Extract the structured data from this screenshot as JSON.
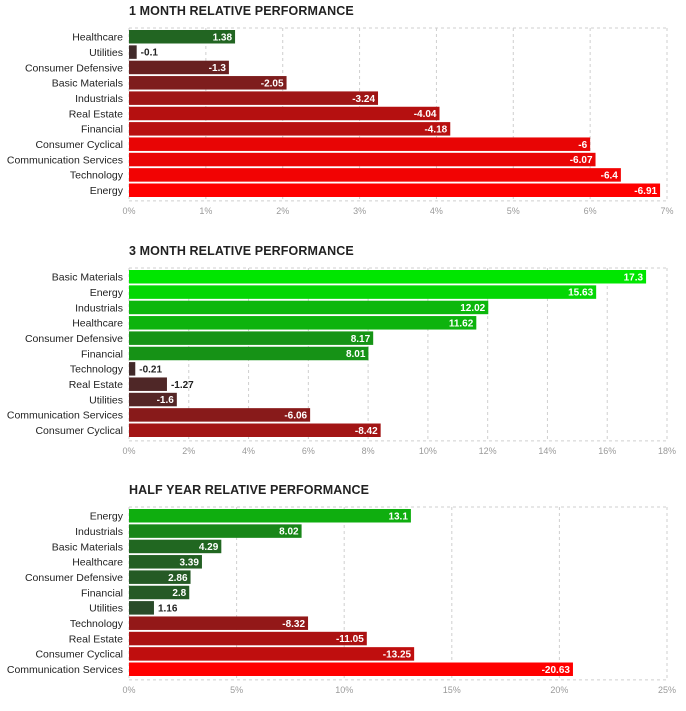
{
  "chart_data": [
    {
      "type": "bar",
      "orientation": "horizontal",
      "title": "1 MONTH RELATIVE PERFORMANCE",
      "categories": [
        "Healthcare",
        "Utilities",
        "Consumer Defensive",
        "Basic Materials",
        "Industrials",
        "Real Estate",
        "Financial",
        "Consumer Cyclical",
        "Communication Services",
        "Technology",
        "Energy"
      ],
      "values": [
        1.38,
        -0.1,
        -1.3,
        -2.05,
        -3.24,
        -4.04,
        -4.18,
        -6,
        -6.07,
        -6.4,
        -6.91
      ],
      "value_labels": [
        "1.38",
        "-0.1",
        "-1.3",
        "-2.05",
        "-3.24",
        "-4.04",
        "-4.18",
        "-6",
        "-6.07",
        "-6.4",
        "-6.91"
      ],
      "xlim": [
        0,
        7
      ],
      "ticks": [
        "0%",
        "1%",
        "2%",
        "3%",
        "4%",
        "5%",
        "6%",
        "7%"
      ],
      "grid": true,
      "scale": "absolute value (bar length = |value|)"
    },
    {
      "type": "bar",
      "orientation": "horizontal",
      "title": "3 MONTH RELATIVE PERFORMANCE",
      "categories": [
        "Basic Materials",
        "Energy",
        "Industrials",
        "Healthcare",
        "Consumer Defensive",
        "Financial",
        "Technology",
        "Real Estate",
        "Utilities",
        "Communication Services",
        "Consumer Cyclical"
      ],
      "values": [
        17.3,
        15.63,
        12.02,
        11.62,
        8.17,
        8.01,
        -0.21,
        -1.27,
        -1.6,
        -6.06,
        -8.42
      ],
      "value_labels": [
        "17.3",
        "15.63",
        "12.02",
        "11.62",
        "8.17",
        "8.01",
        "-0.21",
        "-1.27",
        "-1.6",
        "-6.06",
        "-8.42"
      ],
      "xlim": [
        0,
        18
      ],
      "ticks": [
        "0%",
        "2%",
        "4%",
        "6%",
        "8%",
        "10%",
        "12%",
        "14%",
        "16%",
        "18%"
      ],
      "grid": true,
      "scale": "absolute value (bar length = |value|)"
    },
    {
      "type": "bar",
      "orientation": "horizontal",
      "title": "HALF YEAR RELATIVE PERFORMANCE",
      "categories": [
        "Energy",
        "Industrials",
        "Basic Materials",
        "Healthcare",
        "Consumer Defensive",
        "Financial",
        "Utilities",
        "Technology",
        "Real Estate",
        "Consumer Cyclical",
        "Communication Services"
      ],
      "values": [
        13.1,
        8.02,
        4.29,
        3.39,
        2.86,
        2.8,
        1.16,
        -8.32,
        -11.05,
        -13.25,
        -20.63
      ],
      "value_labels": [
        "13.1",
        "8.02",
        "4.29",
        "3.39",
        "2.86",
        "2.8",
        "1.16",
        "-8.32",
        "-11.05",
        "-13.25",
        "-20.63"
      ],
      "xlim": [
        0,
        25
      ],
      "ticks": [
        "0%",
        "5%",
        "10%",
        "15%",
        "20%",
        "25%"
      ],
      "grid": true,
      "scale": "absolute value (bar length = |value|)"
    }
  ]
}
